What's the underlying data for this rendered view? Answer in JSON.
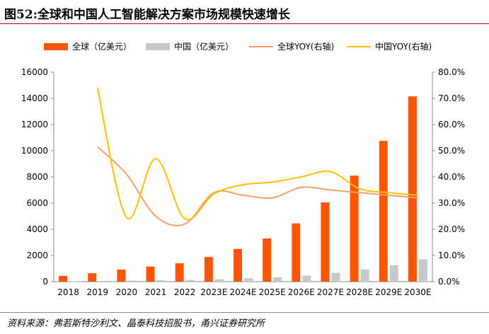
{
  "figure_title": "图52:全球和中国人工智能解决方案市场规模快速增长",
  "source_note": "资料来源：弗若斯特沙利文、晶泰科技招股书，甬兴证券研究所",
  "colors": {
    "global_bar": "#ff5500",
    "china_bar": "#c8c8c8",
    "global_yoy": "#f4a06a",
    "china_yoy": "#ffc000",
    "title_rule": "#c00000"
  },
  "chart_data": {
    "type": "bar",
    "categories": [
      "2018",
      "2019",
      "2020",
      "2021",
      "2022",
      "2023E",
      "2024E",
      "2025E",
      "2026E",
      "2027E",
      "2028E",
      "2029E",
      "2030E"
    ],
    "series": [
      {
        "name": "全球（亿美元）",
        "kind": "bar",
        "axis": "left",
        "values": [
          440,
          640,
          920,
          1150,
          1400,
          1880,
          2500,
          3300,
          4450,
          6050,
          8100,
          10750,
          14150
        ]
      },
      {
        "name": "中国（亿美元）",
        "kind": "bar",
        "axis": "left",
        "values": [
          30,
          55,
          80,
          110,
          130,
          180,
          250,
          330,
          470,
          670,
          930,
          1250,
          1700
        ]
      },
      {
        "name": "全球YOY(右轴)",
        "kind": "line",
        "axis": "right",
        "values": [
          null,
          51.5,
          41.0,
          25.0,
          22.0,
          34.0,
          33.0,
          32.0,
          36.0,
          35.0,
          34.0,
          33.0,
          32.0
        ]
      },
      {
        "name": "中国YOY(右轴)",
        "kind": "line",
        "axis": "right",
        "values": [
          null,
          74.0,
          24.5,
          47.0,
          24.0,
          33.5,
          37.0,
          38.0,
          40.0,
          42.0,
          35.5,
          34.0,
          33.0
        ]
      }
    ],
    "ylim": [
      0,
      16000
    ],
    "yticks": [
      "0",
      "2000",
      "4000",
      "6000",
      "8000",
      "10000",
      "12000",
      "14000",
      "16000"
    ],
    "y2lim": [
      0,
      80
    ],
    "y2ticks": [
      "0.0%",
      "10.0%",
      "20.0%",
      "30.0%",
      "40.0%",
      "50.0%",
      "60.0%",
      "70.0%",
      "80.0%"
    ],
    "legend_position": "top",
    "grid": false
  }
}
